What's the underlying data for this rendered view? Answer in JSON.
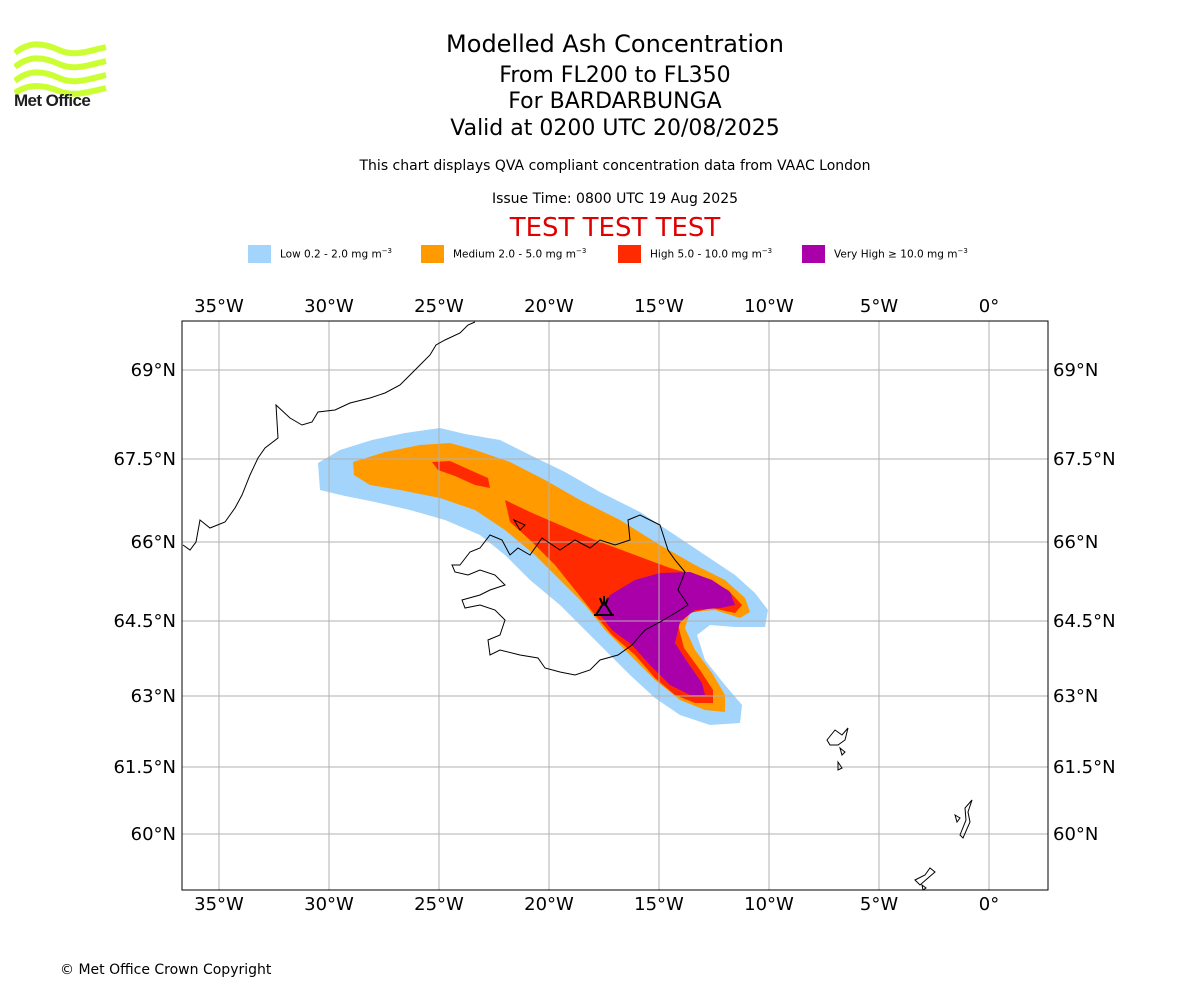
{
  "header": {
    "logo_text": "Met Office",
    "title": "Modelled Ash Concentration",
    "level_range": "From FL200 to FL350",
    "volcano": "For BARDARBUNGA",
    "valid_time": "Valid at 0200 UTC 20/08/2025",
    "description": "This chart displays QVA compliant concentration data from VAAC London",
    "issue_time": "Issue Time: 0800 UTC 19 Aug 2025",
    "test_banner": "TEST TEST TEST"
  },
  "legend": [
    {
      "label": "Low 0.2 - 2.0 mg m",
      "unit_sup": "−3",
      "color": "#a2d4fc"
    },
    {
      "label": "Medium 2.0 - 5.0 mg m",
      "unit_sup": "−3",
      "color": "#ff9a00"
    },
    {
      "label": "High 5.0 - 10.0 mg m",
      "unit_sup": "−3",
      "color": "#ff2a00"
    },
    {
      "label": "Very High  ≥  10.0 mg m",
      "unit_sup": "−3",
      "color": "#aa00aa"
    }
  ],
  "map": {
    "lon_ticks": [
      "35°W",
      "30°W",
      "25°W",
      "20°W",
      "15°W",
      "10°W",
      "5°W",
      "0°"
    ],
    "lat_ticks": [
      "69°N",
      "67.5°N",
      "66°N",
      "64.5°N",
      "63°N",
      "61.5°N",
      "60°N"
    ],
    "lon_range": [
      "36.7°W",
      "2.7°E"
    ],
    "lat_range": [
      "59°N",
      "69.9°N"
    ],
    "grid": true,
    "volcano_marker": "volcano-icon",
    "colors": {
      "grid": "#b0b0b0",
      "coast": "#000000",
      "frame": "#000000"
    }
  },
  "footer": {
    "copyright": "© Met Office Crown Copyright"
  }
}
